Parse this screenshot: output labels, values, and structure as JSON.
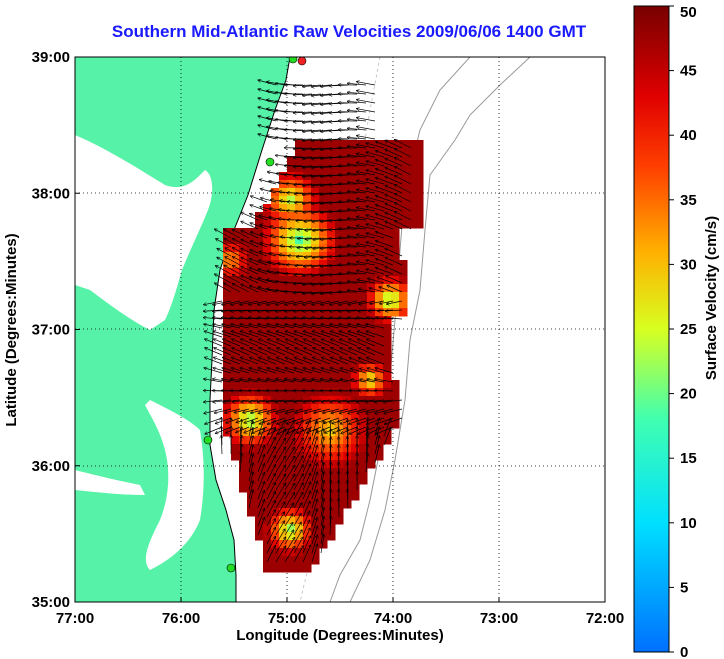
{
  "title": "Southern Mid-Atlantic Raw Velocities 2009/06/06 1400 GMT",
  "xlabel": "Longitude (Degrees:Minutes)",
  "ylabel": "Latitude (Degrees:Minutes)",
  "colorbar": {
    "label": "Surface Velocity (cm/s)",
    "min": 0,
    "max": 50,
    "ticks": [
      "0",
      "5",
      "10",
      "15",
      "20",
      "25",
      "30",
      "35",
      "40",
      "45",
      "50"
    ]
  },
  "axes": {
    "lon_ticks": [
      "77:00",
      "76:00",
      "75:00",
      "74:00",
      "73:00",
      "72:00"
    ],
    "lat_ticks": [
      "39:00",
      "38:00",
      "37:00",
      "36:00",
      "35:00"
    ],
    "lon_range": [
      -77,
      -72
    ],
    "lat_range": [
      35,
      39
    ],
    "grid": "dotted"
  },
  "colors": {
    "land": "#55f2a8",
    "title": "#1a1aff",
    "station": "#22dd22",
    "station_alt": "#ee2222"
  }
}
